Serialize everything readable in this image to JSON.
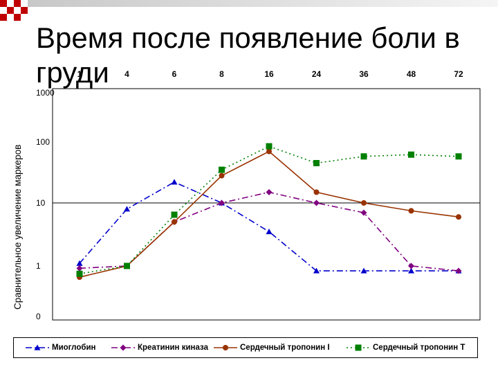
{
  "slide": {
    "title": "Время после появление боли в груди"
  },
  "chart_data": {
    "type": "line",
    "title": "Время после появление боли в груди",
    "ylabel": "Сравнительное увеличение маркеров",
    "xlabel": "",
    "x_ticks": [
      "1",
      "4",
      "6",
      "8",
      "16",
      "24",
      "36",
      "48",
      "72"
    ],
    "x_tick_position": "top",
    "y_scale": "log",
    "y_ticks": [
      "1000",
      "100",
      "10",
      "1",
      "0"
    ],
    "grid": "horizontal line at 10",
    "legend_position": "bottom",
    "series": [
      {
        "name": "Миоглобин",
        "color": "#0000cc",
        "marker": "triangle",
        "dash": "dash-dot",
        "values": [
          1.1,
          8,
          22,
          10,
          3.5,
          0.8,
          0.8,
          0.8,
          0.8
        ]
      },
      {
        "name": "Креатинин киназа",
        "color": "#800080",
        "marker": "diamond",
        "dash": "dash-dot",
        "values": [
          0.9,
          1.0,
          5,
          10,
          15,
          10,
          7,
          1.0,
          0.8
        ]
      },
      {
        "name": "Сердечный тропонин I",
        "color": "#993300",
        "marker": "circle",
        "dash": "solid",
        "values": [
          0.6,
          1.0,
          5,
          28,
          70,
          15,
          10,
          7.5,
          6
        ]
      },
      {
        "name": "Сердечный тропонин T",
        "color": "#008000",
        "marker": "square",
        "dash": "dot",
        "values": [
          0.7,
          1.0,
          6.5,
          35,
          85,
          45,
          58,
          62,
          58
        ]
      }
    ]
  }
}
